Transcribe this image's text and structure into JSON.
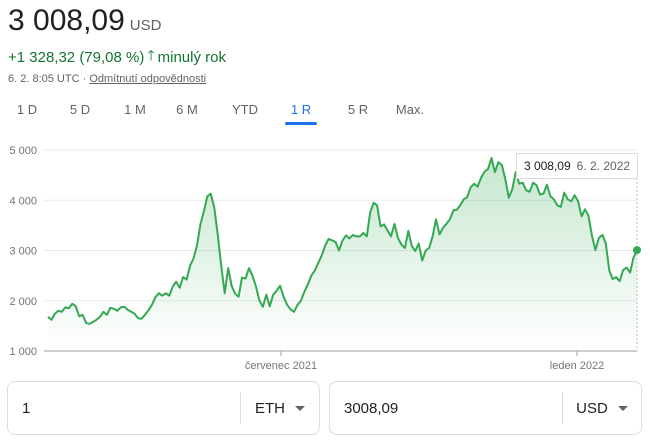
{
  "header": {
    "price": "3 008,09",
    "currency": "USD",
    "change": "+1 328,32 (79,08 %)",
    "change_period": "minulý rok",
    "timestamp": "6. 2. 8:05 UTC · ",
    "disclaimer": "Odmítnutí odpovědnosti",
    "up_color": "#137333"
  },
  "tabs": [
    {
      "label": "1 D",
      "active": false
    },
    {
      "label": "5 D",
      "active": false
    },
    {
      "label": "1 M",
      "active": false
    },
    {
      "label": "6 M",
      "active": false
    },
    {
      "label": "YTD",
      "active": false
    },
    {
      "label": "1 R",
      "active": true
    },
    {
      "label": "5 R",
      "active": false
    },
    {
      "label": "Max.",
      "active": false
    }
  ],
  "tooltip": {
    "value": "3 008,09",
    "date": "6. 2. 2022"
  },
  "chart_data": {
    "type": "area",
    "x_ticks": [
      "červenec 2021",
      "leden 2022"
    ],
    "y_ticks": [
      "5 000",
      "4 000",
      "3 000",
      "2 000",
      "1 000"
    ],
    "ylim": [
      1000,
      5000
    ],
    "line_color": "#34a853",
    "series": [
      {
        "values": [
          1680,
          1620,
          1740,
          1800,
          1780,
          1870,
          1850,
          1940,
          1890,
          1690,
          1720,
          1560,
          1540,
          1580,
          1620,
          1680,
          1780,
          1720,
          1860,
          1840,
          1800,
          1870,
          1880,
          1820,
          1780,
          1740,
          1650,
          1640,
          1720,
          1810,
          1920,
          2070,
          2150,
          2100,
          2150,
          2100,
          2280,
          2380,
          2260,
          2470,
          2420,
          2700,
          2840,
          3100,
          3520,
          3780,
          4080,
          4130,
          3850,
          3300,
          2700,
          2150,
          2650,
          2300,
          2140,
          2080,
          2460,
          2440,
          2650,
          2500,
          2290,
          2010,
          1880,
          2120,
          1890,
          2120,
          2200,
          2300,
          2080,
          1920,
          1830,
          1780,
          1920,
          2000,
          2180,
          2330,
          2500,
          2600,
          2750,
          2900,
          3100,
          3230,
          3200,
          3170,
          3000,
          3200,
          3300,
          3240,
          3310,
          3280,
          3280,
          3350,
          3280,
          3760,
          3950,
          3900,
          3480,
          3520,
          3400,
          3280,
          3530,
          3250,
          3120,
          3050,
          3390,
          3090,
          2990,
          3140,
          2800,
          3000,
          3050,
          3280,
          3620,
          3320,
          3450,
          3530,
          3620,
          3800,
          3810,
          3900,
          4020,
          4060,
          4260,
          4330,
          4270,
          4450,
          4570,
          4620,
          4840,
          4560,
          4760,
          4700,
          4420,
          4050,
          4220,
          4560,
          4330,
          4350,
          4200,
          4170,
          4350,
          4300,
          4110,
          4130,
          4310,
          4080,
          4020,
          3900,
          3870,
          4150,
          4020,
          3980,
          4100,
          3980,
          3680,
          3820,
          3690,
          3290,
          3010,
          3250,
          3310,
          3140,
          2600,
          2430,
          2470,
          2390,
          2610,
          2660,
          2560,
          2860,
          3008
        ]
      }
    ]
  },
  "converter": {
    "from_amount": "1",
    "from_currency": "ETH",
    "to_amount": "3008,09",
    "to_currency": "USD"
  }
}
